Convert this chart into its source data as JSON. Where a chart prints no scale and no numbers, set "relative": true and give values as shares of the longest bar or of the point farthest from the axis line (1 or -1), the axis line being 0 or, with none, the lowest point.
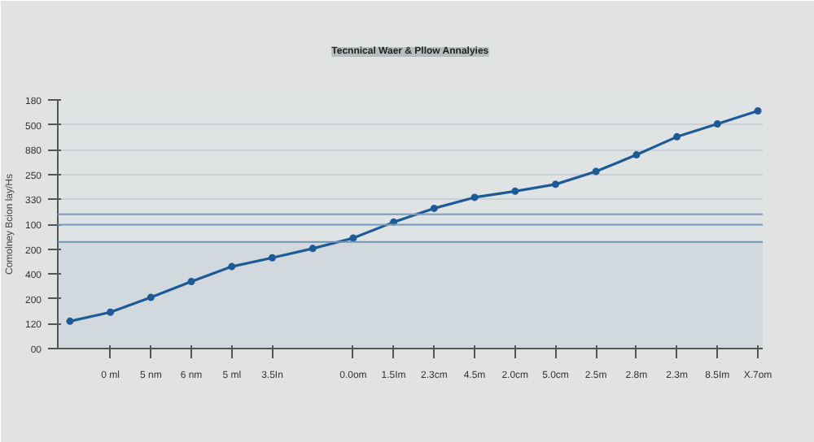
{
  "chart_data": {
    "type": "line",
    "title": "Tecnnical Waer & Pllow Annalyies",
    "ylabel": "Comolney Bcion lay/Hs",
    "categories": [
      null,
      "0 ml",
      "5 nm",
      "6 nm",
      "5 ml",
      "3.5In",
      null,
      "0.0om",
      "1.5Im",
      "2.3cm",
      "4.5m",
      "2.0cm",
      "5.0cm",
      "2.5m",
      "2.8m",
      "2.3m",
      "8.5Im",
      "X.7om"
    ],
    "series": [
      {
        "color": "#1d5a96",
        "values": [
          0.115,
          0.153,
          0.215,
          0.282,
          0.345,
          0.382,
          0.421,
          0.465,
          0.532,
          0.59,
          0.636,
          0.662,
          0.691,
          0.745,
          0.815,
          0.891,
          0.945,
          1.0
        ]
      }
    ],
    "relative": true,
    "annotations": [
      "180",
      "500",
      "880",
      "250",
      "330",
      "100",
      "200",
      "400",
      "200",
      "120",
      "00"
    ],
    "ref_lines": [
      {
        "axis": "y",
        "value": 0.565,
        "color": "#7a9cc0"
      },
      {
        "axis": "y",
        "value": 0.521,
        "color": "#7a9cc0"
      },
      {
        "axis": "y",
        "value": 0.449,
        "color": "#6f93b8"
      }
    ],
    "bands": [
      {
        "axis": "y",
        "from": 0,
        "to": 0.449,
        "color": "#d2d9de"
      }
    ],
    "grid": "y",
    "marker": "circle",
    "line_style": "solid"
  }
}
